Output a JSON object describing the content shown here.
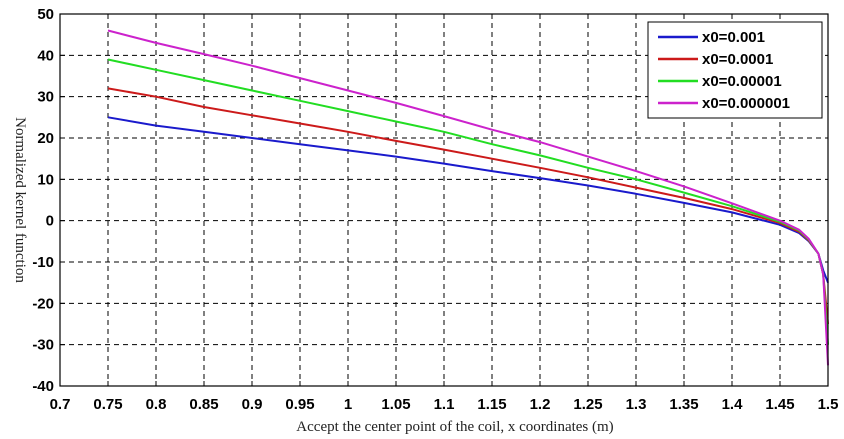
{
  "chart_data": {
    "type": "line",
    "title": "",
    "xlabel": "Accept the center point of the coil, x coordinates (m)",
    "ylabel": "Normalized kernel function",
    "xlim": [
      0.7,
      1.5
    ],
    "ylim": [
      -40,
      50
    ],
    "grid": true,
    "legend_position": "top-right",
    "x_ticks": [
      "0.7",
      "0.75",
      "0.8",
      "0.85",
      "0.9",
      "0.95",
      "1",
      "1.05",
      "1.1",
      "1.15",
      "1.2",
      "1.25",
      "1.3",
      "1.35",
      "1.4",
      "1.45",
      "1.5"
    ],
    "y_ticks": [
      "50",
      "40",
      "30",
      "20",
      "10",
      "0",
      "-10",
      "-20",
      "-30",
      "-40"
    ],
    "x": [
      0.75,
      0.8,
      0.85,
      0.9,
      0.95,
      1.0,
      1.05,
      1.1,
      1.15,
      1.2,
      1.25,
      1.3,
      1.35,
      1.4,
      1.45,
      1.47,
      1.48,
      1.49,
      1.495,
      1.5
    ],
    "series": [
      {
        "name": "x0=0.001",
        "color": "#1a1acc",
        "values": [
          25,
          23,
          21.5,
          20,
          18.5,
          17,
          15.5,
          13.8,
          12,
          10.3,
          8.5,
          6.5,
          4.3,
          2,
          -1,
          -3,
          -5,
          -8,
          -12,
          -15
        ]
      },
      {
        "name": "x0=0.0001",
        "color": "#cc1a1a",
        "values": [
          32,
          30,
          27.5,
          25.5,
          23.5,
          21.5,
          19.3,
          17.2,
          15,
          12.8,
          10.5,
          8,
          5.5,
          2.8,
          -0.6,
          -2.7,
          -4.8,
          -8,
          -13,
          -25
        ]
      },
      {
        "name": "x0=0.00001",
        "color": "#22dd22",
        "values": [
          39,
          36.5,
          34,
          31.5,
          29,
          26.5,
          24,
          21.5,
          18.5,
          15.8,
          12.8,
          10,
          6.8,
          3.5,
          -0.3,
          -2.4,
          -4.6,
          -8,
          -13,
          -30
        ]
      },
      {
        "name": "x0=0.000001",
        "color": "#cc22cc",
        "values": [
          46,
          43,
          40.3,
          37.5,
          34.5,
          31.5,
          28.5,
          25.3,
          22,
          19,
          15.5,
          12,
          8.3,
          4.2,
          0,
          -2.2,
          -4.4,
          -8,
          -13,
          -35
        ]
      }
    ]
  }
}
